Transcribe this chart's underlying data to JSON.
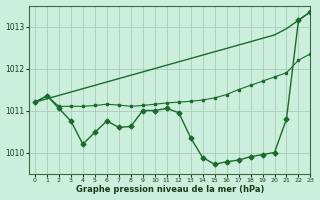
{
  "background_color": "#cceedd",
  "grid_color": "#aaccbb",
  "line_color": "#1a6b2a",
  "xlabel": "Graphe pression niveau de la mer (hPa)",
  "ylim": [
    1009.5,
    1013.5
  ],
  "xlim": [
    -0.5,
    23
  ],
  "yticks": [
    1010,
    1011,
    1012,
    1013
  ],
  "xticks": [
    0,
    1,
    2,
    3,
    4,
    5,
    6,
    7,
    8,
    9,
    10,
    11,
    12,
    13,
    14,
    15,
    16,
    17,
    18,
    19,
    20,
    21,
    22,
    23
  ],
  "line1_x": [
    0,
    1,
    2,
    3,
    4,
    5,
    6,
    7,
    8,
    9,
    10,
    11,
    12,
    13,
    14,
    15,
    16,
    17,
    18,
    19,
    20,
    21,
    22,
    23
  ],
  "line1_y": [
    1011.2,
    1011.28,
    1011.36,
    1011.44,
    1011.52,
    1011.6,
    1011.68,
    1011.76,
    1011.84,
    1011.92,
    1012.0,
    1012.08,
    1012.16,
    1012.24,
    1012.32,
    1012.4,
    1012.48,
    1012.56,
    1012.64,
    1012.72,
    1012.8,
    1012.95,
    1013.15,
    1013.35
  ],
  "line2_x": [
    0,
    1,
    2,
    3,
    4,
    5,
    6,
    7,
    8,
    9,
    10,
    11,
    12,
    13,
    14,
    15,
    16,
    17,
    18,
    19,
    20,
    21,
    22,
    23
  ],
  "line2_y": [
    1011.2,
    1011.35,
    1011.1,
    1011.1,
    1011.1,
    1011.12,
    1011.15,
    1011.13,
    1011.1,
    1011.12,
    1011.15,
    1011.18,
    1011.2,
    1011.22,
    1011.25,
    1011.3,
    1011.38,
    1011.5,
    1011.6,
    1011.7,
    1011.8,
    1011.9,
    1012.2,
    1012.35
  ],
  "line3_x": [
    0,
    1,
    2,
    3,
    4,
    5,
    6,
    7,
    8,
    9,
    10,
    11,
    12,
    13,
    14,
    15,
    16,
    17,
    18,
    19,
    20,
    21,
    22,
    23
  ],
  "line3_y": [
    1011.2,
    1011.35,
    1011.05,
    1010.75,
    1010.2,
    1010.48,
    1010.75,
    1010.6,
    1010.62,
    1011.0,
    1011.0,
    1011.05,
    1010.95,
    1010.35,
    1009.88,
    1009.72,
    1009.78,
    1009.82,
    1009.9,
    1009.95,
    1010.0,
    1010.8,
    1013.15,
    1013.35
  ]
}
